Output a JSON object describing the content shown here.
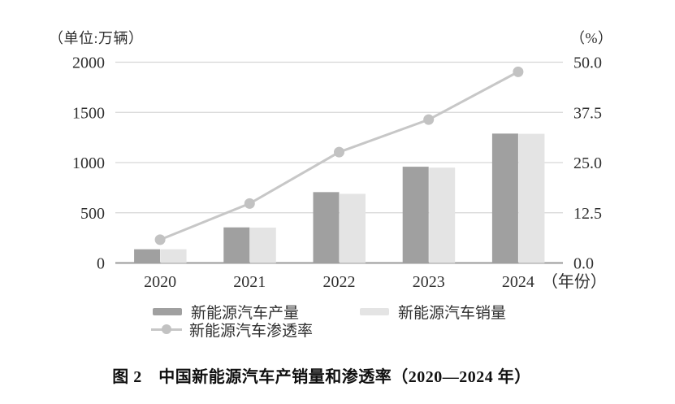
{
  "figure": {
    "left_axis_unit": "（单位:万辆）",
    "right_axis_unit": "（%）",
    "x_axis_suffix": "（年份）",
    "caption": "图 2　中国新能源汽车产销量和渗透率（2020—2024 年）"
  },
  "legend": {
    "production_label": "新能源汽车产量",
    "sales_label": "新能源汽车销量",
    "penetration_label": "新能源汽车渗透率"
  },
  "colors": {
    "production_bar": "#a0a0a0",
    "sales_bar": "#e4e4e4",
    "line": "#c7c7c7",
    "marker": "#c2c2c2",
    "grid": "#d6d6d6",
    "axis_baseline": "#9a9a9a",
    "text": "#2f2f2f"
  },
  "chart_data": {
    "type": "bar",
    "subtype": "grouped-bars-with-line",
    "title": "图 2　中国新能源汽车产销量和渗透率（2020—2024 年）",
    "categories": [
      "2020",
      "2021",
      "2022",
      "2023",
      "2024"
    ],
    "series": [
      {
        "name": "新能源汽车产量",
        "type": "bar",
        "axis": "left",
        "values": [
          136.6,
          354.5,
          705.8,
          958.7,
          1288.8
        ]
      },
      {
        "name": "新能源汽车销量",
        "type": "bar",
        "axis": "left",
        "values": [
          136.7,
          352.1,
          688.7,
          949.5,
          1286.6
        ]
      },
      {
        "name": "新能源汽车渗透率",
        "type": "line",
        "axis": "right",
        "values": [
          5.8,
          14.8,
          27.6,
          35.7,
          47.6
        ]
      }
    ],
    "left_axis": {
      "title": "（单位:万辆）",
      "ticks": [
        0,
        500,
        1000,
        1500,
        2000
      ],
      "range": [
        0,
        2000
      ]
    },
    "right_axis": {
      "title": "（%）",
      "tick_labels": [
        "0.0",
        "12.5",
        "25.0",
        "37.5",
        "50.0"
      ],
      "ticks": [
        0,
        12.5,
        25,
        37.5,
        50
      ],
      "range": [
        0,
        50
      ]
    },
    "xlabel": "（年份）",
    "grid": true,
    "legend_position": "bottom"
  }
}
